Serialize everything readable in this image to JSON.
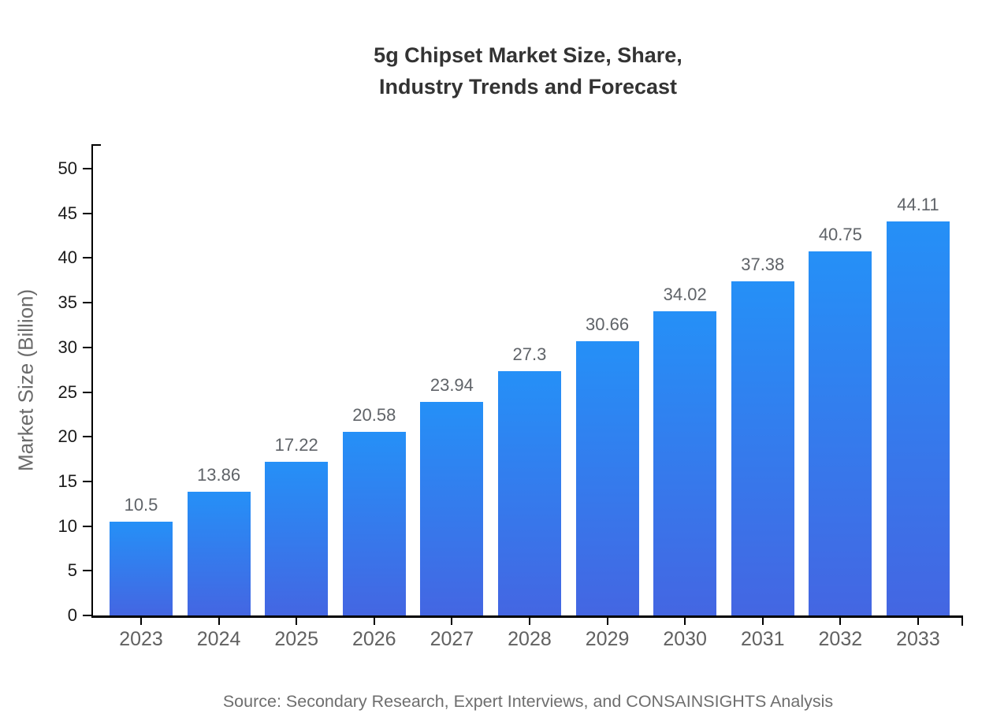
{
  "title": "5g Chipset Market Size, Share,\nIndustry Trends and Forecast",
  "source_note": "Source: Secondary Research, Expert Interviews, and CONSAINSIGHTS Analysis",
  "chart_data": {
    "type": "bar",
    "title": "5g Chipset Market Size, Share, Industry Trends and Forecast",
    "categories": [
      "2023",
      "2024",
      "2025",
      "2026",
      "2027",
      "2028",
      "2029",
      "2030",
      "2031",
      "2032",
      "2033"
    ],
    "values": [
      10.5,
      13.86,
      17.22,
      20.58,
      23.94,
      27.3,
      30.66,
      34.02,
      37.38,
      40.75,
      44.11
    ],
    "data_labels": [
      "10.5",
      "13.86",
      "17.22",
      "20.58",
      "23.94",
      "27.3",
      "30.66",
      "34.02",
      "37.38",
      "40.75",
      "44.11"
    ],
    "xlabel": "",
    "ylabel": "Market Size (Billion)",
    "ylim": [
      0,
      50
    ],
    "yticks": [
      0,
      5,
      10,
      15,
      20,
      25,
      30,
      35,
      40,
      45,
      50
    ],
    "grid": false,
    "legend": "none",
    "colors": {
      "bar_gradient_top": "#2590F7",
      "bar_gradient_bottom": "#4466E2",
      "axis": "#000000",
      "title_text": "#333333",
      "tick_text": "#1a1a1a",
      "category_text": "#616161",
      "value_text": "#5f6368",
      "axis_title_text": "#6a6a6a",
      "source_text": "#6e6e6e"
    }
  }
}
